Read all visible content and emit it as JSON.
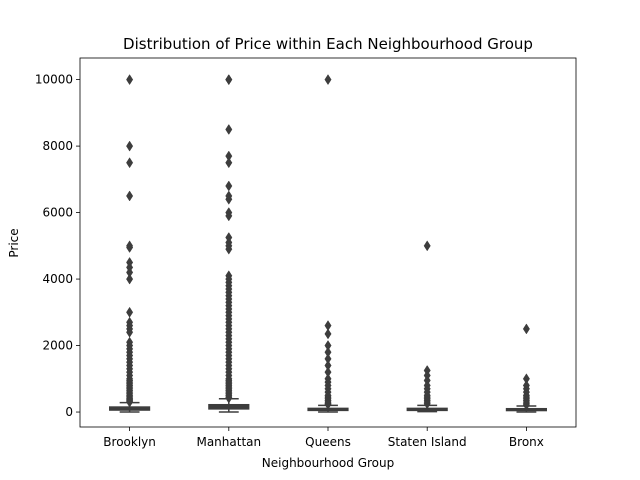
{
  "chart_data": {
    "type": "box",
    "title": "Distribution of Price within Each Neighbourhood Group",
    "xlabel": "Neighbourhood Group",
    "ylabel": "Price",
    "ylim": [
      -450,
      10650
    ],
    "yticks": [
      0,
      2000,
      4000,
      6000,
      8000,
      10000
    ],
    "grid": false,
    "colors": {
      "box": "#3d3d3d",
      "outlier": "#3d3d3d",
      "axis": "#000000"
    },
    "categories": [
      "Brooklyn",
      "Manhattan",
      "Queens",
      "Staten Island",
      "Bronx"
    ],
    "groups": [
      {
        "name": "Brooklyn",
        "q1": 60,
        "median": 90,
        "q3": 150,
        "whisker_low": 0,
        "whisker_high": 285,
        "outliers": [
          10000,
          8000,
          7500,
          6500,
          5000,
          4950,
          4500,
          4350,
          4200,
          4000,
          3000,
          2700,
          2600,
          2500,
          2400,
          2100,
          2000,
          1900,
          1800,
          1700,
          1600,
          1500,
          1400,
          1300,
          1200,
          1100,
          1000,
          950,
          900,
          850,
          800,
          750,
          700,
          650,
          600,
          550,
          500,
          460,
          420,
          390,
          360,
          330,
          300
        ]
      },
      {
        "name": "Manhattan",
        "q1": 95,
        "median": 150,
        "q3": 220,
        "whisker_low": 0,
        "whisker_high": 400,
        "outliers": [
          10000,
          9999,
          8500,
          7700,
          7500,
          6800,
          6500,
          6400,
          6000,
          5900,
          5250,
          5100,
          5000,
          4900,
          4100,
          4000,
          3900,
          3800,
          3700,
          3600,
          3500,
          3400,
          3300,
          3200,
          3100,
          3000,
          2900,
          2800,
          2700,
          2600,
          2500,
          2400,
          2300,
          2200,
          2100,
          2000,
          1900,
          1800,
          1700,
          1600,
          1500,
          1400,
          1300,
          1200,
          1100,
          1000,
          950,
          900,
          850,
          800,
          750,
          700,
          650,
          600,
          550,
          500,
          450,
          420
        ]
      },
      {
        "name": "Queens",
        "q1": 50,
        "median": 75,
        "q3": 110,
        "whisker_low": 0,
        "whisker_high": 200,
        "outliers": [
          10000,
          2600,
          2350,
          2000,
          1800,
          1600,
          1400,
          1200,
          1000,
          900,
          800,
          700,
          600,
          500,
          450,
          400,
          350,
          300,
          260,
          230
        ]
      },
      {
        "name": "Staten Island",
        "q1": 50,
        "median": 75,
        "q3": 110,
        "whisker_low": 13,
        "whisker_high": 200,
        "outliers": [
          5000,
          1250,
          1100,
          950,
          800,
          700,
          600,
          500,
          450,
          400,
          350,
          300,
          250
        ]
      },
      {
        "name": "Bronx",
        "q1": 45,
        "median": 65,
        "q3": 100,
        "whisker_low": 0,
        "whisker_high": 180,
        "outliers": [
          2500,
          1000,
          800,
          700,
          600,
          500,
          450,
          400,
          350,
          300,
          250,
          210
        ]
      }
    ]
  }
}
